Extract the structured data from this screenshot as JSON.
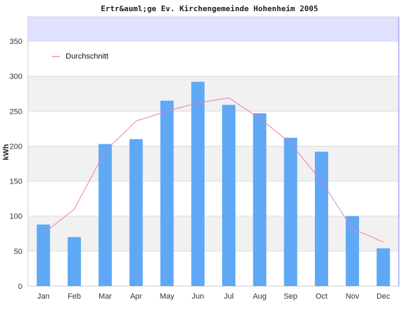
{
  "chart_data": {
    "type": "bar",
    "title": "Ertr&auml;ge Ev. Kirchengemeinde Hohenheim 2005",
    "xlabel": "",
    "ylabel": "kWh",
    "categories": [
      "Jan",
      "Feb",
      "Mar",
      "Apr",
      "May",
      "Jun",
      "Jul",
      "Aug",
      "Sep",
      "Oct",
      "Nov",
      "Dec"
    ],
    "ylim": [
      0,
      385
    ],
    "yticks": [
      0,
      50,
      100,
      150,
      200,
      250,
      300,
      350
    ],
    "grid": true,
    "legend_position": "top-left",
    "series": [
      {
        "kind": "bar",
        "color": "#5fa8f5",
        "values": [
          88,
          70,
          203,
          210,
          265,
          292,
          259,
          247,
          212,
          192,
          100,
          54
        ]
      },
      {
        "kind": "line",
        "name": "Durchschnitt",
        "color": "#e879c0",
        "values": [
          75,
          110,
          193,
          236,
          250,
          262,
          269,
          240,
          204,
          150,
          82,
          63
        ]
      }
    ]
  },
  "colors": {
    "band": "#f1f1f1",
    "header_band": "#e0e0ff",
    "axis": "#a8a8e8"
  }
}
